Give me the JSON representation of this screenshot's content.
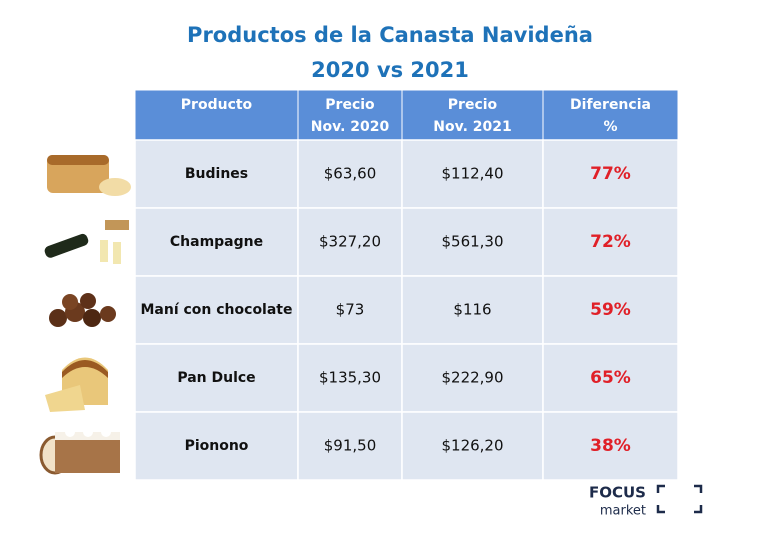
{
  "header": {
    "title": "Productos de la Canasta Navideña",
    "subtitle": "2020 vs 2021"
  },
  "table": {
    "columns": [
      [
        "Producto"
      ],
      [
        "Precio",
        "Nov. 2020"
      ],
      [
        "Precio",
        "Nov. 2021"
      ],
      [
        "Diferencia",
        "%"
      ]
    ],
    "rows": [
      [
        "Budines",
        "$63,60",
        "$112,40",
        "77%"
      ],
      [
        "Champagne",
        "$327,20",
        "$561,30",
        "72%"
      ],
      [
        "Maní con chocolate",
        "$73",
        "$116",
        "59%"
      ],
      [
        "Pan Dulce",
        "$135,30",
        "$222,90",
        "65%"
      ],
      [
        "Pionono",
        "$91,50",
        "$126,20",
        "38%"
      ]
    ]
  },
  "logo": {
    "brand": "FOCUS",
    "tagline": "market"
  }
}
